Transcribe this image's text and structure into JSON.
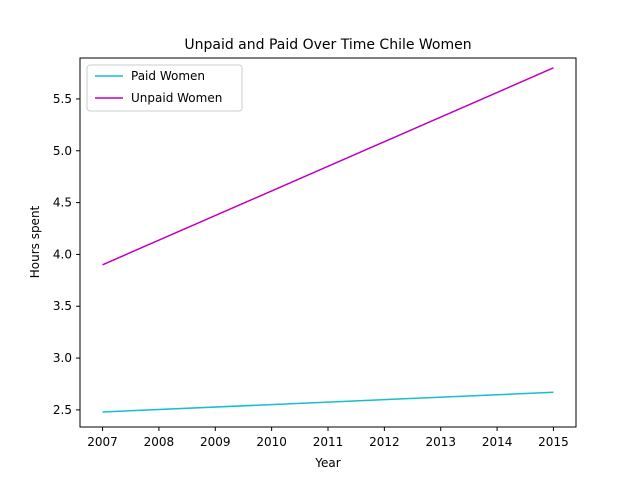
{
  "chart_data": {
    "type": "line",
    "title": "Unpaid and Paid Over Time Chile Women",
    "xlabel": "Year",
    "ylabel": "Hours spent",
    "xlim": [
      2006.6,
      2015.4
    ],
    "ylim": [
      2.335,
      5.895
    ],
    "x_ticks": [
      "2007",
      "2008",
      "2009",
      "2010",
      "2011",
      "2012",
      "2013",
      "2014",
      "2015"
    ],
    "y_ticks": [
      "2.5",
      "3.0",
      "3.5",
      "4.0",
      "4.5",
      "5.0",
      "5.5"
    ],
    "grid": false,
    "legend_position": "top-left",
    "series": [
      {
        "name": "Paid Women",
        "color": "#17becf",
        "x": [
          2007,
          2015
        ],
        "y": [
          2.48,
          2.67
        ]
      },
      {
        "name": "Unpaid Women",
        "color": "#bf00bf",
        "x": [
          2007,
          2015
        ],
        "y": [
          3.9,
          5.8
        ]
      }
    ]
  }
}
